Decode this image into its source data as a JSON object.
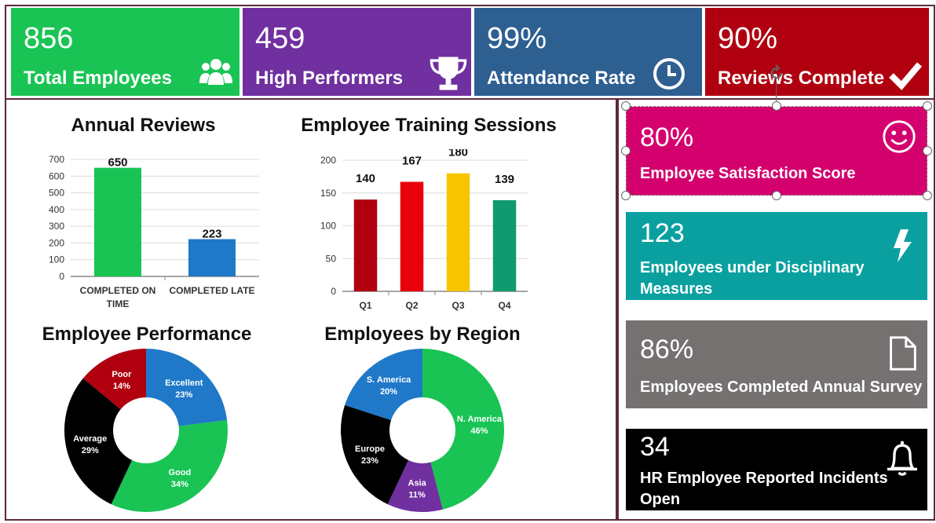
{
  "kpis": [
    {
      "value": "856",
      "label": "Total Employees",
      "color": "#19c454",
      "icon": "users-icon"
    },
    {
      "value": "459",
      "label": "High Performers",
      "color": "#7030a0",
      "icon": "trophy-icon"
    },
    {
      "value": "99%",
      "label": "Attendance Rate",
      "color": "#2e5f91",
      "icon": "clock-icon"
    },
    {
      "value": "90%",
      "label": "Reviews Complete",
      "color": "#b00010",
      "icon": "checkmark-icon"
    }
  ],
  "side_cards": [
    {
      "value": "80%",
      "label": "Employee Satisfaction Score",
      "color": "#d4006e",
      "icon": "smiley-icon"
    },
    {
      "value": "123",
      "label": "Employees under Disciplinary Measures",
      "color": "#0aa0a0",
      "icon": "lightning-icon"
    },
    {
      "value": "86%",
      "label": "Employees Completed Annual Survey",
      "color": "#767171",
      "icon": "document-icon"
    },
    {
      "value": "34",
      "label": "HR Employee Reported Incidents Open",
      "color": "#000000",
      "icon": "bell-icon"
    }
  ],
  "chart_titles": {
    "reviews": "Annual Reviews",
    "training": "Employee Training Sessions",
    "performance": "Employee Performance",
    "region": "Employees by Region"
  },
  "chart_data": [
    {
      "type": "bar",
      "title": "Annual Reviews",
      "categories": [
        "COMPLETED ON TIME",
        "COMPLETED LATE"
      ],
      "values": [
        650,
        223
      ],
      "colors": [
        "#19c454",
        "#1f78c8"
      ],
      "yticks": [
        "700",
        "600",
        "500",
        "400",
        "300",
        "200",
        "100",
        "0"
      ],
      "ylim": [
        0,
        700
      ],
      "grid": true
    },
    {
      "type": "bar",
      "title": "Employee Training Sessions",
      "categories": [
        "Q1",
        "Q2",
        "Q3",
        "Q4"
      ],
      "values": [
        140,
        167,
        180,
        139
      ],
      "colors": [
        "#b00010",
        "#e8000b",
        "#f7c400",
        "#0f9b6e"
      ],
      "yticks": [
        "200",
        "150",
        "100",
        "50",
        "0"
      ],
      "ylim": [
        0,
        200
      ],
      "grid": true
    },
    {
      "type": "pie",
      "title": "Employee Performance",
      "slices": [
        {
          "name": "Excellent",
          "pct_label": "23%",
          "value": 23,
          "color": "#1f78c8"
        },
        {
          "name": "Good",
          "pct_label": "34%",
          "value": 34,
          "color": "#19c454"
        },
        {
          "name": "Average",
          "pct_label": "29%",
          "value": 29,
          "color": "#000000"
        },
        {
          "name": "Poor",
          "pct_label": "14%",
          "value": 14,
          "color": "#b00010"
        }
      ]
    },
    {
      "type": "pie",
      "title": "Employees by Region",
      "slices": [
        {
          "name": "N. America",
          "pct_label": "46%",
          "value": 46,
          "color": "#19c454"
        },
        {
          "name": "Asia",
          "pct_label": "11%",
          "value": 11,
          "color": "#7030a0"
        },
        {
          "name": "Europe",
          "pct_label": "23%",
          "value": 23,
          "color": "#000000"
        },
        {
          "name": "S. America",
          "pct_label": "20%",
          "value": 20,
          "color": "#1f78c8"
        }
      ]
    }
  ]
}
